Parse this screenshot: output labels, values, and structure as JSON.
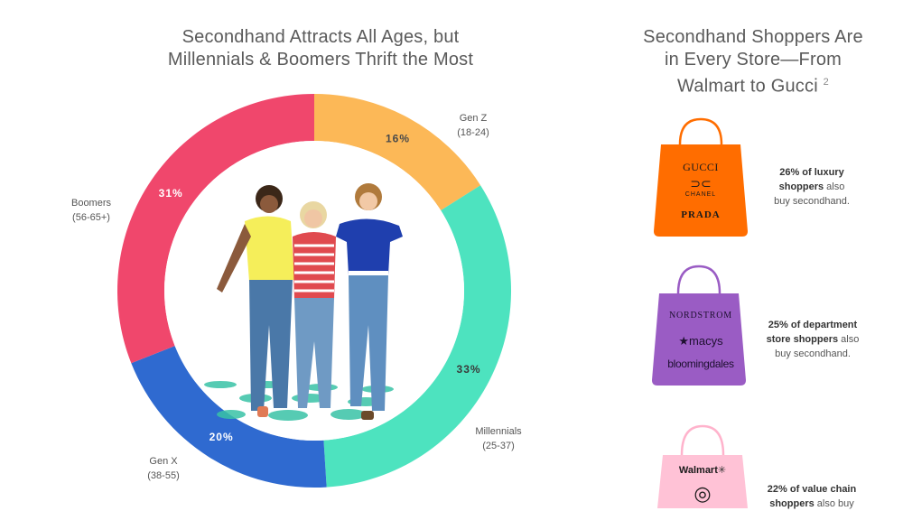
{
  "left_chart": {
    "title_line1": "Secondhand Attracts All Ages, but",
    "title_line2": "Millennials & Boomers Thrift the Most"
  },
  "chart_data": {
    "type": "pie",
    "variant": "donut",
    "title": "Secondhand Attracts All Ages, but Millennials & Boomers Thrift the Most",
    "series": [
      {
        "name": "Gen Z",
        "range": "(18-24)",
        "value": 16,
        "label": "16%",
        "color": "#fcb857",
        "label_color": "#4a4a4a"
      },
      {
        "name": "Millennials",
        "range": "(25-37)",
        "value": 33,
        "label": "33%",
        "color": "#4de3bf",
        "label_color": "#3a3a3a"
      },
      {
        "name": "Gen X",
        "range": "(38-55)",
        "value": 20,
        "label": "20%",
        "color": "#2f6ad0",
        "label_color": "#ffffff"
      },
      {
        "name": "Boomers",
        "range": "(56-65+)",
        "value": 31,
        "label": "31%",
        "color": "#f0476c",
        "label_color": "#ffffff"
      }
    ]
  },
  "right_panel": {
    "title_line1": "Secondhand Shoppers Are",
    "title_line2": "in Every Store—From",
    "title_line3": "Walmart to Gucci",
    "footnote": "2",
    "bags": [
      {
        "color": "#ff6d00",
        "handle_color": "#ff6d00",
        "brands": [
          "GUCCI",
          "CHANEL",
          "PRADA"
        ],
        "pct": "26% of luxury",
        "bold_rest": "shoppers",
        "line1_plain": " also",
        "line2": "buy secondhand."
      },
      {
        "color": "#9a5cc4",
        "handle_color": "#9a5cc4",
        "brands": [
          "NORDSTROM",
          "★macys",
          "bloomingdales"
        ],
        "pct": "25% of department",
        "bold_rest": "store shoppers",
        "line1_plain": " also",
        "line2": "buy secondhand."
      },
      {
        "color": "#ffc2d6",
        "handle_color": "#ffb3cc",
        "brands": [
          "Walmart",
          "◎"
        ],
        "pct": "22% of value chain",
        "bold_rest": "shoppers",
        "line1_plain": " also buy",
        "line2": ""
      }
    ]
  }
}
